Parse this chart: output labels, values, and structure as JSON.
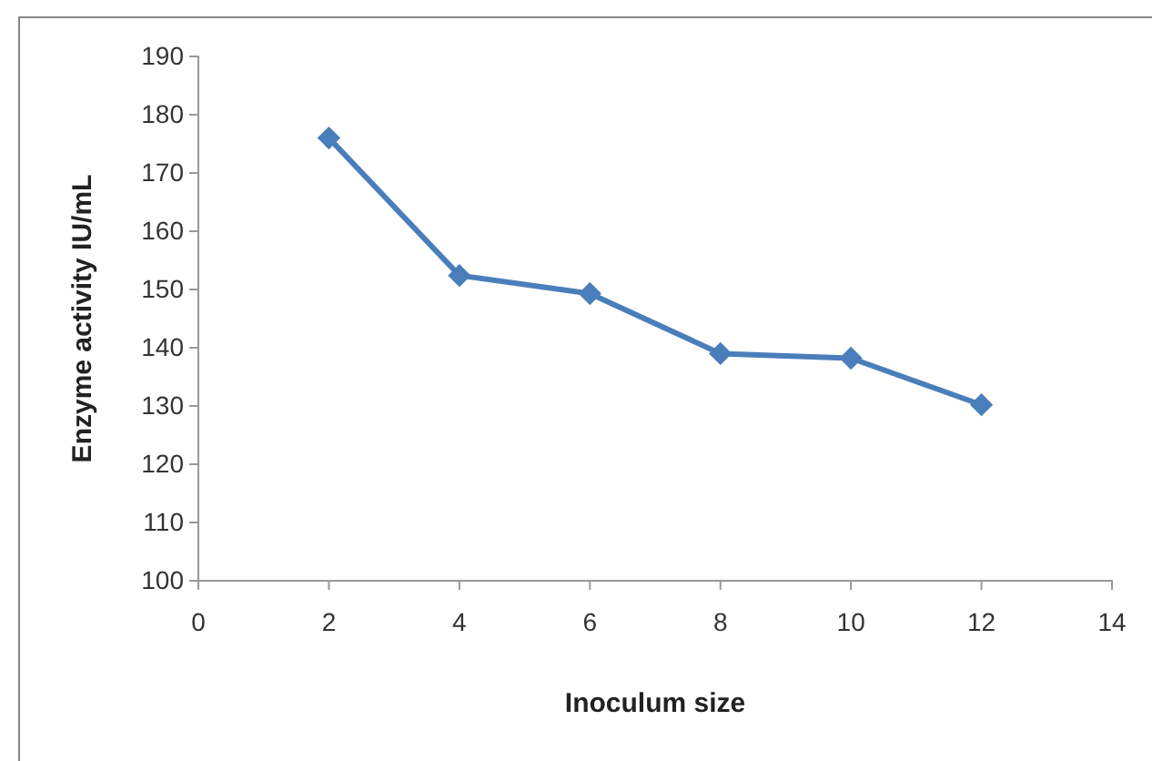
{
  "chart_data": {
    "type": "line",
    "xlabel": "Inoculum size",
    "ylabel": "Enzyme activity IU/mL",
    "x": [
      2,
      4,
      6,
      8,
      10,
      12
    ],
    "series": [
      {
        "color": "#4a7ebb",
        "values": [
          176,
          152.4,
          149.3,
          139,
          138.2,
          130.2
        ]
      }
    ],
    "xlim": [
      0,
      14
    ],
    "xticks": [
      0,
      2,
      4,
      6,
      8,
      10,
      12,
      14
    ],
    "ylim": [
      100,
      190
    ],
    "yticks": [
      100,
      110,
      120,
      130,
      140,
      150,
      160,
      170,
      180,
      190
    ],
    "grid": false,
    "marker": "diamond",
    "line_style": "solid"
  }
}
